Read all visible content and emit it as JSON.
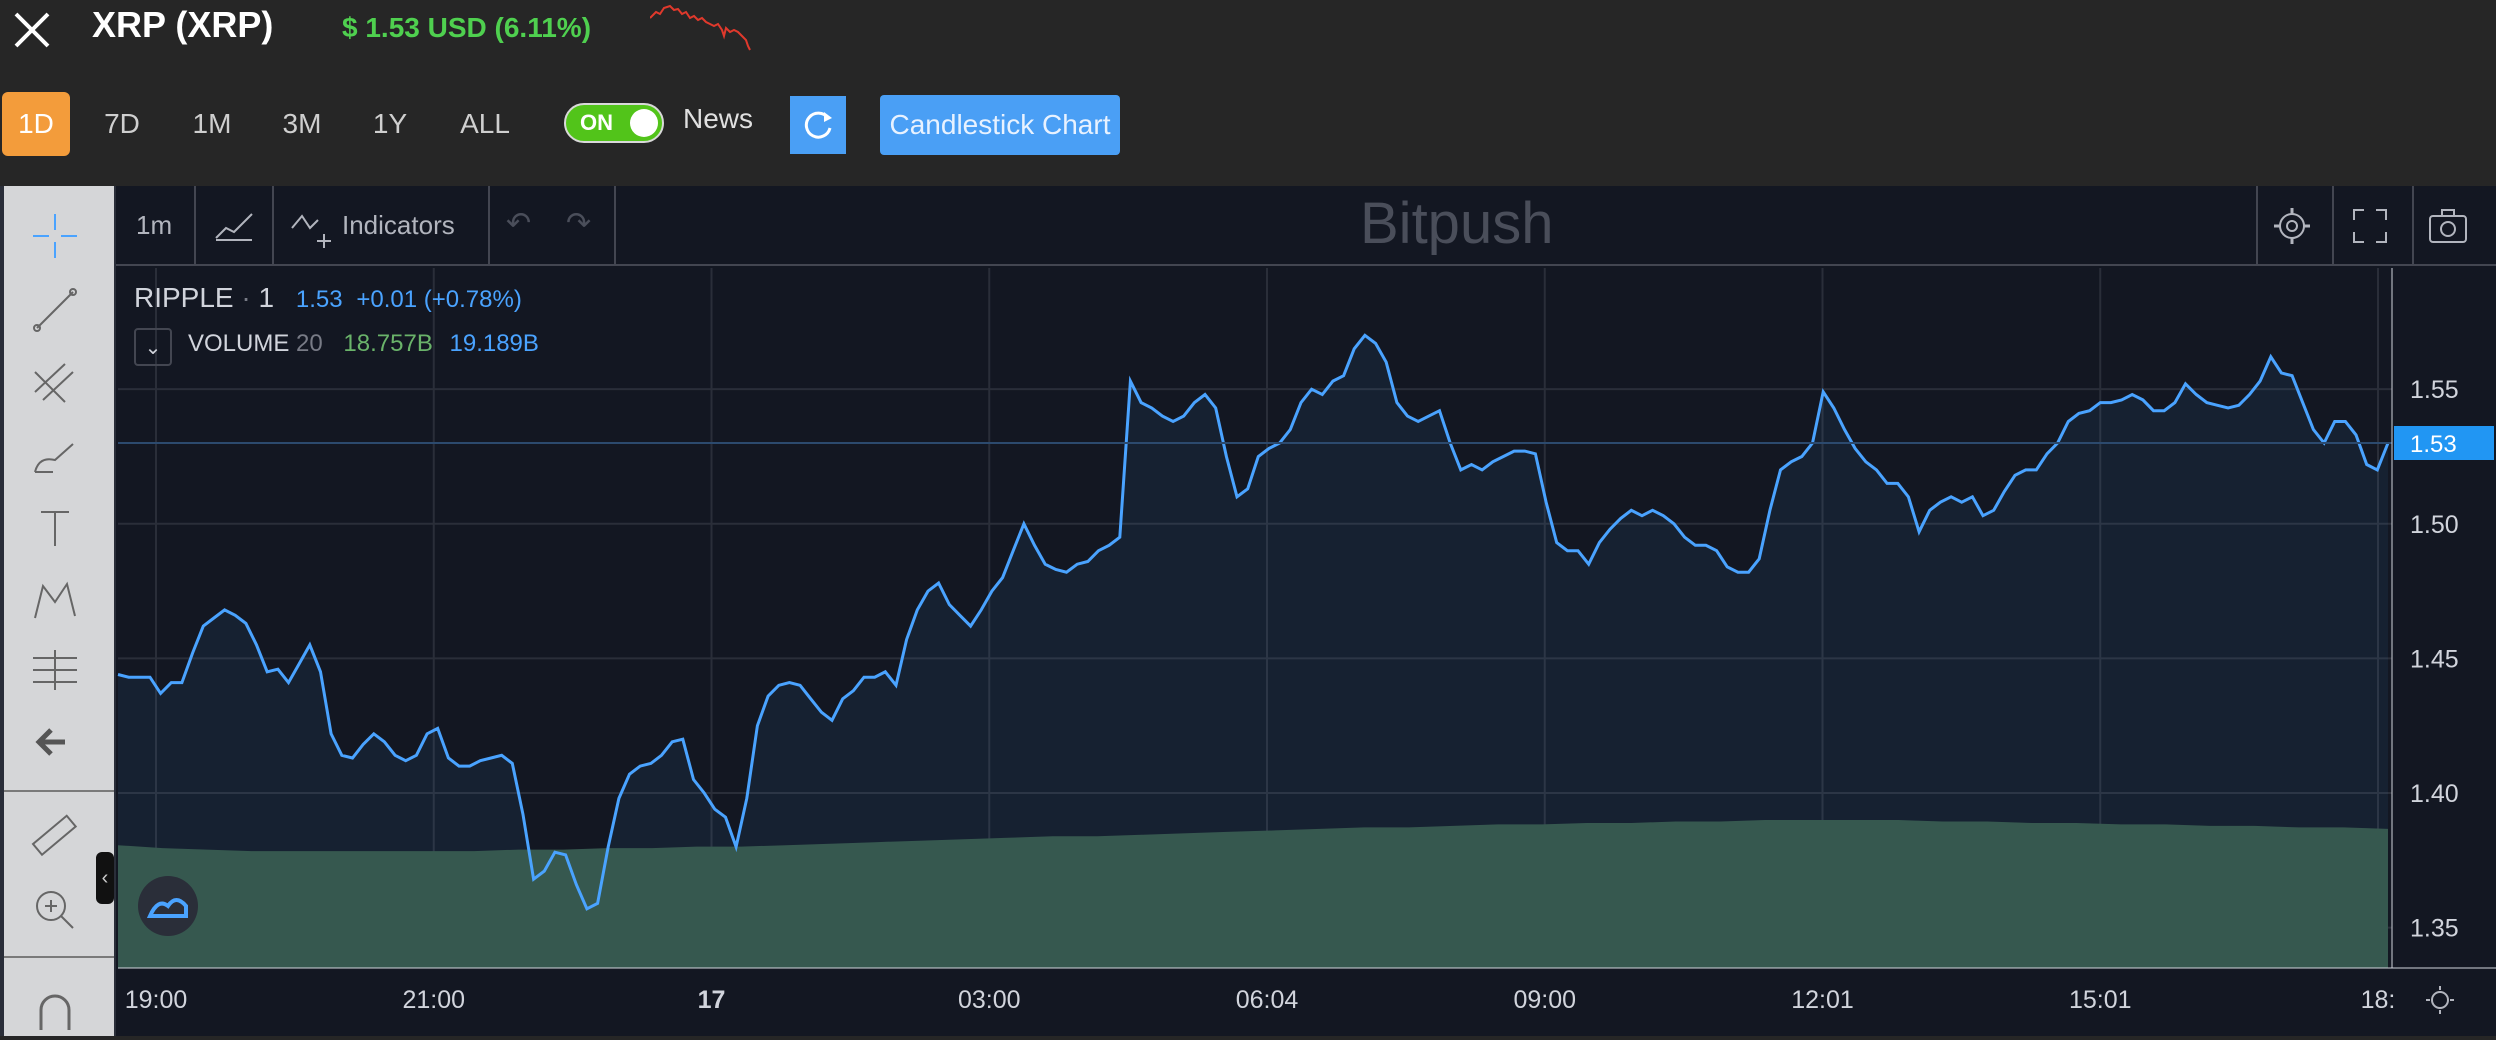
{
  "header": {
    "title": "XRP (XRP)",
    "price_text": "$ 1.53 USD (6.11%)",
    "price_color": "#4fd04f"
  },
  "ranges": [
    {
      "label": "1D",
      "active": true
    },
    {
      "label": "7D",
      "active": false
    },
    {
      "label": "1M",
      "active": false
    },
    {
      "label": "3M",
      "active": false
    },
    {
      "label": "1Y",
      "active": false
    },
    {
      "label": "ALL",
      "active": false
    }
  ],
  "toggle": {
    "label": "ON"
  },
  "news_label": "News",
  "candlestick_label": "Candlestick Chart",
  "tv_toolbar": {
    "interval": "1m",
    "indicators_label": "Indicators",
    "watermark": "Bitpush"
  },
  "legend": {
    "symbol": "RIPPLE",
    "dot": "·",
    "interval": "1",
    "last": "1.53",
    "change": "+0.01 (+0.78%)",
    "volume_label": "VOLUME",
    "volume_period": "20",
    "volume_value1": "18.757B",
    "volume_value2": "19.189B"
  },
  "chart_data": {
    "type": "area",
    "x_tick_labels": [
      "19:00",
      "21:00",
      "17",
      "03:00",
      "06:04",
      "09:00",
      "12:01",
      "15:01",
      "18:"
    ],
    "y_tick_labels": [
      "1.55",
      "1.50",
      "1.45",
      "1.40",
      "1.35"
    ],
    "ylim": [
      1.335,
      1.595
    ],
    "last_price_label": "1.53",
    "series": [
      {
        "type": "line",
        "color": "#4aa3ff",
        "values": [
          1.444,
          1.443,
          1.443,
          1.443,
          1.437,
          1.441,
          1.441,
          1.452,
          1.462,
          1.465,
          1.468,
          1.466,
          1.463,
          1.455,
          1.445,
          1.446,
          1.441,
          1.448,
          1.455,
          1.445,
          1.422,
          1.414,
          1.413,
          1.418,
          1.422,
          1.419,
          1.414,
          1.412,
          1.414,
          1.422,
          1.424,
          1.413,
          1.41,
          1.41,
          1.412,
          1.413,
          1.414,
          1.411,
          1.392,
          1.368,
          1.371,
          1.378,
          1.377,
          1.366,
          1.357,
          1.359,
          1.38,
          1.398,
          1.407,
          1.41,
          1.411,
          1.414,
          1.419,
          1.42,
          1.405,
          1.4,
          1.394,
          1.391,
          1.38,
          1.398,
          1.425,
          1.436,
          1.44,
          1.441,
          1.44,
          1.435,
          1.43,
          1.427,
          1.435,
          1.438,
          1.443,
          1.443,
          1.445,
          1.44,
          1.457,
          1.468,
          1.475,
          1.478,
          1.47,
          1.466,
          1.462,
          1.468,
          1.475,
          1.48,
          1.49,
          1.5,
          1.492,
          1.485,
          1.483,
          1.482,
          1.485,
          1.486,
          1.49,
          1.492,
          1.495,
          1.553,
          1.545,
          1.543,
          1.54,
          1.538,
          1.54,
          1.545,
          1.548,
          1.543,
          1.525,
          1.51,
          1.513,
          1.525,
          1.528,
          1.53,
          1.535,
          1.545,
          1.55,
          1.548,
          1.553,
          1.555,
          1.565,
          1.57,
          1.567,
          1.56,
          1.545,
          1.54,
          1.538,
          1.54,
          1.542,
          1.53,
          1.52,
          1.522,
          1.52,
          1.523,
          1.525,
          1.527,
          1.527,
          1.526,
          1.508,
          1.493,
          1.49,
          1.49,
          1.485,
          1.493,
          1.498,
          1.502,
          1.505,
          1.503,
          1.505,
          1.503,
          1.5,
          1.495,
          1.492,
          1.492,
          1.49,
          1.484,
          1.482,
          1.482,
          1.487,
          1.505,
          1.52,
          1.523,
          1.525,
          1.53,
          1.549,
          1.543,
          1.535,
          1.528,
          1.523,
          1.52,
          1.515,
          1.515,
          1.51,
          1.497,
          1.505,
          1.508,
          1.51,
          1.508,
          1.51,
          1.503,
          1.505,
          1.512,
          1.518,
          1.52,
          1.52,
          1.526,
          1.53,
          1.538,
          1.541,
          1.542,
          1.545,
          1.545,
          1.546,
          1.548,
          1.546,
          1.542,
          1.542,
          1.545,
          1.552,
          1.548,
          1.545,
          1.544,
          1.543,
          1.544,
          1.548,
          1.553,
          1.562,
          1.556,
          1.555,
          1.545,
          1.535,
          1.53,
          1.538,
          1.538,
          1.533,
          1.522,
          1.52,
          1.53
        ]
      },
      {
        "type": "volume_area",
        "color": "#36584f",
        "values": [
          0.83,
          0.81,
          0.8,
          0.79,
          0.79,
          0.79,
          0.79,
          0.79,
          0.79,
          0.8,
          0.8,
          0.81,
          0.81,
          0.82,
          0.82,
          0.83,
          0.84,
          0.85,
          0.86,
          0.87,
          0.88,
          0.89,
          0.89,
          0.9,
          0.91,
          0.92,
          0.93,
          0.94,
          0.95,
          0.95,
          0.96,
          0.97,
          0.97,
          0.98,
          0.98,
          0.99,
          0.99,
          1.0,
          1.0,
          1.0,
          1.0,
          0.99,
          0.99,
          0.98,
          0.98,
          0.97,
          0.97,
          0.96,
          0.96,
          0.95,
          0.95,
          0.94
        ]
      }
    ],
    "grid": true,
    "volume_overlay": true
  },
  "colors": {
    "accent_orange": "#f39c3b",
    "accent_blue": "#4a9ff5",
    "toggle_green": "#52c41a",
    "line_blue": "#4aa3ff",
    "volume_green": "#36584f",
    "bg_dark": "#131722"
  },
  "icons": {
    "close": "close-x-icon",
    "refresh": "refresh-icon",
    "settings": "gear-icon",
    "fullscreen": "fullscreen-icon",
    "camera": "camera-icon"
  }
}
